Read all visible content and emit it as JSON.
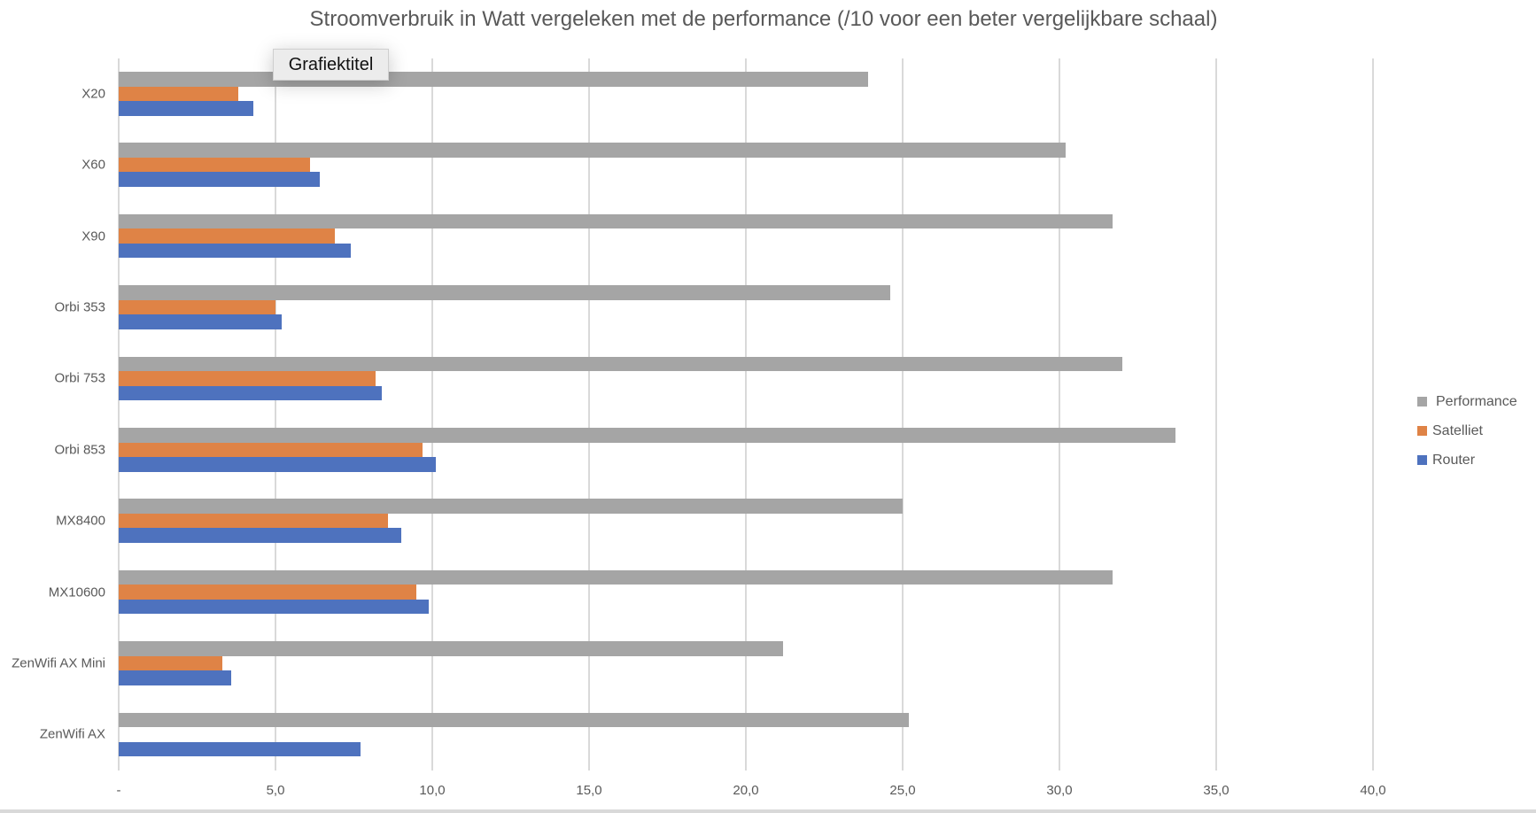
{
  "chart_data": {
    "type": "bar",
    "orientation": "horizontal",
    "title": "Stroomverbruik in Watt vergeleken met de performance (/10 voor een beter vergelijkbare schaal)",
    "categories": [
      "X20",
      "X60",
      "X90",
      "Orbi 353",
      "Orbi 753",
      "Orbi 853",
      "MX8400",
      "MX10600",
      "ZenWifi AX Mini",
      "ZenWifi AX"
    ],
    "series": [
      {
        "name": "Performance",
        "color": "#A5A5A5",
        "values": [
          23.9,
          30.2,
          31.7,
          24.6,
          32.0,
          33.7,
          25.0,
          31.7,
          21.2,
          25.2
        ]
      },
      {
        "name": "Satelliet",
        "color": "#DF8346",
        "values": [
          3.8,
          6.1,
          6.9,
          5.0,
          8.2,
          9.7,
          8.6,
          9.5,
          3.3,
          null
        ]
      },
      {
        "name": "Router",
        "color": "#4E72BE",
        "values": [
          4.3,
          6.4,
          7.4,
          5.2,
          8.4,
          10.1,
          9.0,
          9.9,
          3.6,
          7.7
        ]
      }
    ],
    "xlabel": "",
    "ylabel": "",
    "xlim": [
      0,
      40
    ],
    "x_ticks": [
      "-",
      "5,0",
      "10,0",
      "15,0",
      "20,0",
      "25,0",
      "30,0",
      "35,0",
      "40,0"
    ],
    "grid": true,
    "legend_position": "right",
    "legend": [
      "Performance",
      "Satelliet",
      "Router"
    ]
  },
  "tooltip": {
    "text": "Grafiektitel"
  }
}
